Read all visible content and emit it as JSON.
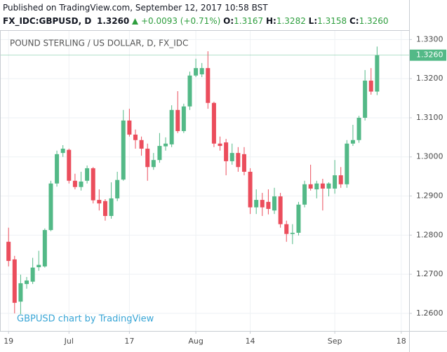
{
  "header": {
    "published": "Published on TradingView.com, September 12, 2017 10:58 BST",
    "symbol": "FX_IDC:GBPUSD, D",
    "price": "1.3260",
    "change": "+0.0093 (+0.71%)",
    "ohlc": [
      {
        "label": "O:",
        "value": "1.3167"
      },
      {
        "label": "H:",
        "value": "1.3282"
      },
      {
        "label": "L:",
        "value": "1.3158"
      },
      {
        "label": "C:",
        "value": "1.3260"
      }
    ]
  },
  "chart_data": {
    "type": "candlestick",
    "legend_text": "POUND STERLING / US DOLLAR, D, FX_IDC",
    "watermark": "GBPUSD chart by TradingView",
    "up_color": "#53b987",
    "down_color": "#eb4d5c",
    "grid": true,
    "xlim": [
      -1.3,
      66.3
    ],
    "xticks": [
      {
        "value": 0,
        "label": "19"
      },
      {
        "value": 10,
        "label": "Jul"
      },
      {
        "value": 20,
        "label": "17"
      },
      {
        "value": 31,
        "label": "Aug"
      },
      {
        "value": 40,
        "label": "14"
      },
      {
        "value": 54,
        "label": "Sep"
      },
      {
        "value": 65,
        "label": "18"
      }
    ],
    "ylim": [
      1.2555,
      1.3324
    ],
    "yticks": [
      {
        "value": 1.26,
        "label": "1.2600"
      },
      {
        "value": 1.27,
        "label": "1.2700"
      },
      {
        "value": 1.28,
        "label": "1.2800"
      },
      {
        "value": 1.29,
        "label": "1.2900"
      },
      {
        "value": 1.3,
        "label": "1.3000"
      },
      {
        "value": 1.31,
        "label": "1.3100"
      },
      {
        "value": 1.32,
        "label": "1.3200"
      },
      {
        "value": 1.33,
        "label": "1.3300"
      }
    ],
    "last_price": {
      "value": 1.326,
      "label": "1.3260"
    },
    "open": [
      1.2783,
      1.2738,
      1.263,
      1.2675,
      1.2681,
      1.2718,
      1.272,
      1.2813,
      1.2932,
      1.301,
      1.3018,
      1.2939,
      1.2923,
      1.2939,
      1.2971,
      1.289,
      1.2887,
      1.2849,
      1.2894,
      1.2942,
      1.3093,
      1.3057,
      1.3043,
      1.3021,
      1.2974,
      1.2992,
      1.3027,
      1.3032,
      1.312,
      1.3066,
      1.3129,
      1.3208,
      1.3211,
      1.3227,
      1.3138,
      1.3034,
      1.3037,
      1.2989,
      1.301,
      1.3007,
      1.2962,
      1.2871,
      1.289,
      1.2885,
      1.2863,
      1.2899,
      1.2828,
      1.2803,
      1.2806,
      1.2878,
      1.293,
      1.2917,
      1.2932,
      1.2919,
      1.2919,
      1.2953,
      1.293,
      1.3034,
      1.3043,
      1.31,
      1.3195,
      1.3167
    ],
    "high": [
      1.2819,
      1.2747,
      1.2699,
      1.2693,
      1.2742,
      1.276,
      1.2817,
      1.2939,
      1.3016,
      1.303,
      1.3021,
      1.2957,
      1.2962,
      1.2978,
      1.2974,
      1.2917,
      1.2892,
      1.2935,
      1.2962,
      1.312,
      1.3123,
      1.307,
      1.3052,
      1.3034,
      1.301,
      1.3061,
      1.305,
      1.3132,
      1.3168,
      1.3136,
      1.3218,
      1.3251,
      1.324,
      1.327,
      1.3141,
      1.3052,
      1.3046,
      1.3034,
      1.3025,
      1.3025,
      1.2971,
      1.2917,
      1.2908,
      1.2917,
      1.2921,
      1.2908,
      1.2837,
      1.2828,
      1.2885,
      1.2939,
      1.298,
      1.2939,
      1.2944,
      1.2935,
      1.2992,
      1.2974,
      1.3043,
      1.3082,
      1.3105,
      1.3222,
      1.3227,
      1.3282
    ],
    "low": [
      1.272,
      1.26,
      1.2598,
      1.2663,
      1.2675,
      1.2709,
      1.2717,
      1.281,
      1.2924,
      1.3,
      1.2932,
      1.2917,
      1.2914,
      1.2932,
      1.2881,
      1.2863,
      1.2837,
      1.2842,
      1.2887,
      1.2939,
      1.3052,
      1.3021,
      1.3003,
      1.2939,
      1.2967,
      1.2985,
      1.3016,
      1.3025,
      1.3061,
      1.3061,
      1.312,
      1.3204,
      1.3204,
      1.3123,
      1.3025,
      1.3016,
      1.2953,
      1.298,
      1.2962,
      1.2953,
      1.2854,
      1.2854,
      1.2849,
      1.2853,
      1.2854,
      1.2819,
      1.2783,
      1.2777,
      1.2799,
      1.2871,
      1.2914,
      1.2894,
      1.2863,
      1.2899,
      1.2906,
      1.2921,
      1.2921,
      1.3028,
      1.3036,
      1.3093,
      1.3159,
      1.3158
    ],
    "close": [
      1.2734,
      1.2627,
      1.2677,
      1.2684,
      1.2717,
      1.2724,
      1.2813,
      1.2932,
      1.3007,
      1.3021,
      1.2939,
      1.2923,
      1.2937,
      1.2971,
      1.2889,
      1.2881,
      1.2849,
      1.2894,
      1.2941,
      1.3093,
      1.3057,
      1.3043,
      1.3021,
      1.2974,
      1.2992,
      1.3028,
      1.3034,
      1.312,
      1.3066,
      1.3129,
      1.3208,
      1.3227,
      1.3227,
      1.3138,
      1.3034,
      1.3028,
      1.2989,
      1.301,
      1.2974,
      1.2962,
      1.2871,
      1.289,
      1.2871,
      1.2867,
      1.2899,
      1.2828,
      1.2803,
      1.2806,
      1.2878,
      1.293,
      1.2919,
      1.2932,
      1.2919,
      1.2932,
      1.2953,
      1.293,
      1.3034,
      1.3043,
      1.31,
      1.3195,
      1.3167,
      1.326
    ]
  }
}
